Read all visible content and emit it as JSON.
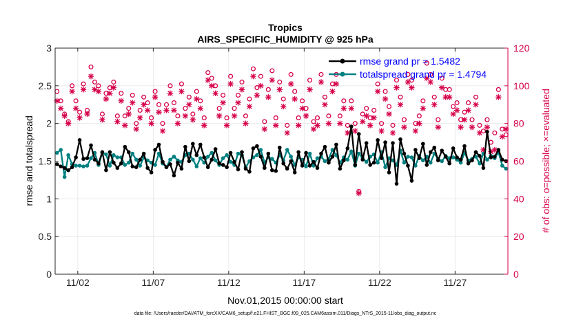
{
  "chart_data": {
    "type": "line",
    "title": "Tropics",
    "subtitle": "AIRS_SPECIFIC_HUMIDITY @ 925 hPa",
    "xlabel": "Nov.01,2015 00:00:00 start",
    "ylabel_left": "rmse and totalspread",
    "ylabel_right": "# of obs: o=possible; ×=evaluated",
    "footnote": "data file: /Users/raeder/DAI/ATM_forcXX/CAM6_setup/f.e21.FHIST_BGC.f09_025.CAM6assim.011/Diags_NTrS_2015-11/obs_diag_output.nc",
    "xlim": [
      0.5,
      30.5
    ],
    "ylim_left": [
      0,
      3
    ],
    "ylim_right": [
      0,
      120
    ],
    "x_ticks": [
      {
        "value": 2,
        "label": "11/02"
      },
      {
        "value": 7,
        "label": "11/07"
      },
      {
        "value": 12,
        "label": "11/12"
      },
      {
        "value": 17,
        "label": "11/17"
      },
      {
        "value": 22,
        "label": "11/22"
      },
      {
        "value": 27,
        "label": "11/27"
      }
    ],
    "y_ticks_left": [
      {
        "value": 0,
        "label": "0"
      },
      {
        "value": 0.5,
        "label": "0.5"
      },
      {
        "value": 1,
        "label": "1"
      },
      {
        "value": 1.5,
        "label": "1.5"
      },
      {
        "value": 2,
        "label": "2"
      },
      {
        "value": 2.5,
        "label": "2.5"
      },
      {
        "value": 3,
        "label": "3"
      }
    ],
    "y_ticks_right": [
      {
        "value": 0,
        "label": "0"
      },
      {
        "value": 20,
        "label": "20"
      },
      {
        "value": 40,
        "label": "40"
      },
      {
        "value": 60,
        "label": "60"
      },
      {
        "value": 80,
        "label": "80"
      },
      {
        "value": 100,
        "label": "100"
      },
      {
        "value": 120,
        "label": "120"
      }
    ],
    "grid": true,
    "legend_position": "top-right",
    "colors": {
      "rmse": "#000000",
      "spread": "#008080",
      "obs": "#d6004b",
      "axis": "#262626"
    },
    "series": [
      {
        "name": "rmse grand pr = 1.5482",
        "axis": "left",
        "x": [
          0.625,
          0.875,
          1.125,
          1.375,
          1.625,
          1.875,
          2.125,
          2.375,
          2.625,
          2.875,
          3.125,
          3.375,
          3.625,
          3.875,
          4.125,
          4.375,
          4.625,
          4.875,
          5.125,
          5.375,
          5.625,
          5.875,
          6.125,
          6.375,
          6.625,
          6.875,
          7.125,
          7.375,
          7.625,
          7.875,
          8.125,
          8.375,
          8.625,
          8.875,
          9.125,
          9.375,
          9.625,
          9.875,
          10.125,
          10.375,
          10.625,
          10.875,
          11.125,
          11.375,
          11.625,
          11.875,
          12.125,
          12.375,
          12.625,
          12.875,
          13.125,
          13.375,
          13.625,
          13.875,
          14.125,
          14.375,
          14.625,
          14.875,
          15.125,
          15.375,
          15.625,
          15.875,
          16.125,
          16.375,
          16.625,
          16.875,
          17.125,
          17.375,
          17.625,
          17.875,
          18.125,
          18.375,
          18.625,
          18.875,
          19.125,
          19.375,
          19.625,
          19.875,
          20.125,
          20.375,
          20.625,
          20.875,
          21.125,
          21.375,
          21.625,
          21.875,
          22.125,
          22.375,
          22.625,
          22.875,
          23.125,
          23.375,
          23.625,
          23.875,
          24.125,
          24.375,
          24.625,
          24.875,
          25.125,
          25.375,
          25.625,
          25.875,
          26.125,
          26.375,
          26.625,
          26.875,
          27.125,
          27.375,
          27.625,
          27.875,
          28.125,
          28.375,
          28.625,
          28.875,
          29.125,
          29.375,
          29.625,
          29.875,
          30.125,
          30.375
        ],
        "values": [
          1.46,
          1.43,
          1.41,
          1.38,
          1.42,
          1.55,
          1.78,
          1.53,
          1.54,
          1.71,
          1.52,
          1.47,
          1.62,
          1.38,
          1.62,
          1.48,
          1.41,
          1.47,
          1.69,
          1.62,
          1.43,
          1.42,
          1.52,
          1.6,
          1.41,
          1.35,
          1.65,
          1.72,
          1.49,
          1.42,
          1.46,
          1.31,
          1.48,
          1.4,
          1.69,
          1.5,
          1.73,
          1.58,
          1.72,
          1.55,
          1.42,
          1.52,
          1.66,
          1.47,
          1.45,
          1.42,
          1.61,
          1.49,
          1.39,
          1.62,
          1.4,
          1.36,
          1.67,
          1.7,
          1.56,
          1.41,
          1.6,
          1.38,
          1.37,
          1.68,
          1.47,
          1.4,
          1.5,
          1.35,
          1.62,
          1.44,
          1.61,
          1.44,
          1.49,
          1.41,
          1.6,
          1.69,
          1.48,
          1.56,
          1.72,
          1.4,
          1.51,
          1.67,
          1.96,
          1.45,
          1.86,
          1.52,
          1.74,
          1.45,
          1.48,
          1.78,
          1.54,
          1.75,
          1.35,
          1.74,
          1.2,
          1.79,
          1.6,
          1.44,
          1.24,
          1.65,
          1.54,
          1.73,
          1.45,
          1.62,
          1.68,
          1.51,
          1.64,
          1.56,
          1.47,
          1.67,
          1.55,
          1.52,
          1.7,
          1.47,
          1.51,
          1.62,
          1.57,
          1.41,
          1.89,
          1.55,
          1.56,
          1.65,
          1.52,
          1.5
        ]
      },
      {
        "name": "totalspread grand pr = 1.4794",
        "axis": "left",
        "x": [
          0.625,
          0.875,
          1.125,
          1.375,
          1.625,
          1.875,
          2.125,
          2.375,
          2.625,
          2.875,
          3.125,
          3.375,
          3.625,
          3.875,
          4.125,
          4.375,
          4.625,
          4.875,
          5.125,
          5.375,
          5.625,
          5.875,
          6.125,
          6.375,
          6.625,
          6.875,
          7.125,
          7.375,
          7.625,
          7.875,
          8.125,
          8.375,
          8.625,
          8.875,
          9.125,
          9.375,
          9.625,
          9.875,
          10.125,
          10.375,
          10.625,
          10.875,
          11.125,
          11.375,
          11.625,
          11.875,
          12.125,
          12.375,
          12.625,
          12.875,
          13.125,
          13.375,
          13.625,
          13.875,
          14.125,
          14.375,
          14.625,
          14.875,
          15.125,
          15.375,
          15.625,
          15.875,
          16.125,
          16.375,
          16.625,
          16.875,
          17.125,
          17.375,
          17.625,
          17.875,
          18.125,
          18.375,
          18.625,
          18.875,
          19.125,
          19.375,
          19.625,
          19.875,
          20.125,
          20.375,
          20.625,
          20.875,
          21.125,
          21.375,
          21.625,
          21.875,
          22.125,
          22.375,
          22.625,
          22.875,
          23.125,
          23.375,
          23.625,
          23.875,
          24.125,
          24.375,
          24.625,
          24.875,
          25.125,
          25.375,
          25.625,
          25.875,
          26.125,
          26.375,
          26.625,
          26.875,
          27.125,
          27.375,
          27.625,
          27.875,
          28.125,
          28.375,
          28.625,
          28.875,
          29.125,
          29.375,
          29.625,
          29.875,
          30.125,
          30.375
        ],
        "values": [
          1.61,
          1.65,
          1.29,
          1.58,
          1.46,
          1.44,
          1.44,
          1.43,
          1.44,
          1.54,
          1.61,
          1.45,
          1.61,
          1.59,
          1.44,
          1.58,
          1.55,
          1.55,
          1.45,
          1.48,
          1.6,
          1.52,
          1.44,
          1.55,
          1.51,
          1.48,
          1.45,
          1.6,
          1.47,
          1.42,
          1.52,
          1.56,
          1.51,
          1.49,
          1.58,
          1.6,
          1.52,
          1.43,
          1.54,
          1.48,
          1.56,
          1.61,
          1.51,
          1.45,
          1.54,
          1.58,
          1.49,
          1.45,
          1.6,
          1.58,
          1.42,
          1.5,
          1.55,
          1.58,
          1.65,
          1.48,
          1.55,
          1.53,
          1.48,
          1.58,
          1.51,
          1.65,
          1.56,
          1.45,
          1.55,
          1.52,
          1.43,
          1.6,
          1.44,
          1.54,
          1.56,
          1.5,
          1.53,
          1.65,
          1.58,
          1.48,
          1.55,
          1.52,
          1.63,
          1.44,
          1.6,
          1.54,
          1.49,
          1.56,
          1.59,
          1.48,
          1.62,
          1.42,
          1.54,
          1.51,
          1.45,
          1.64,
          1.48,
          1.56,
          1.55,
          1.44,
          1.57,
          1.51,
          1.56,
          1.48,
          1.6,
          1.53,
          1.5,
          1.57,
          1.54,
          1.55,
          1.52,
          1.48,
          1.61,
          1.51,
          1.53,
          1.56,
          1.47,
          1.6,
          1.52,
          1.57,
          1.54,
          1.62,
          1.44,
          1.4
        ]
      },
      {
        "name": "obs possible",
        "axis": "right",
        "marker": "o",
        "x": [
          0.625,
          0.875,
          1.125,
          1.375,
          1.625,
          1.875,
          2.125,
          2.375,
          2.625,
          2.875,
          3.125,
          3.375,
          3.625,
          3.875,
          4.125,
          4.375,
          4.625,
          4.875,
          5.125,
          5.375,
          5.625,
          5.875,
          6.125,
          6.375,
          6.625,
          6.875,
          7.125,
          7.375,
          7.625,
          7.875,
          8.125,
          8.375,
          8.625,
          8.875,
          9.125,
          9.375,
          9.625,
          9.875,
          10.125,
          10.375,
          10.625,
          10.875,
          11.125,
          11.375,
          11.625,
          11.875,
          12.125,
          12.375,
          12.625,
          12.875,
          13.125,
          13.375,
          13.625,
          13.875,
          14.125,
          14.375,
          14.625,
          14.875,
          15.125,
          15.375,
          15.625,
          15.875,
          16.125,
          16.375,
          16.625,
          16.875,
          17.125,
          17.375,
          17.625,
          17.875,
          18.125,
          18.375,
          18.625,
          18.875,
          19.125,
          19.375,
          19.625,
          19.875,
          20.125,
          20.375,
          20.625,
          20.875,
          21.125,
          21.375,
          21.625,
          21.875,
          22.125,
          22.375,
          22.625,
          22.875,
          23.125,
          23.375,
          23.625,
          23.875,
          24.125,
          24.375,
          24.625,
          24.875,
          25.125,
          25.375,
          25.625,
          25.875,
          26.125,
          26.375,
          26.625,
          26.875,
          27.125,
          27.375,
          27.625,
          27.875,
          28.125,
          28.375,
          28.625,
          28.875,
          29.125,
          29.375,
          29.625,
          29.875,
          30.125,
          30.375
        ],
        "values": [
          97,
          92,
          85,
          81,
          100,
          92,
          86,
          101,
          87,
          110,
          102,
          100,
          85,
          96,
          99,
          102,
          84,
          96,
          84,
          88,
          95,
          80,
          87,
          94,
          91,
          83,
          97,
          90,
          80,
          90,
          100,
          91,
          84,
          101,
          88,
          94,
          85,
          97,
          92,
          83,
          107,
          104,
          100,
          88,
          95,
          83,
          105,
          88,
          95,
          102,
          84,
          93,
          109,
          99,
          105,
          81,
          98,
          108,
          83,
          102,
          93,
          79,
          106,
          97,
          83,
          92,
          88,
          103,
          81,
          83,
          106,
          94,
          84,
          101,
          106,
          84,
          92,
          79,
          92,
          80,
          44,
          85,
          88,
          83,
          87,
          101,
          80,
          97,
          89,
          79,
          103,
          94,
          82,
          106,
          103,
          80,
          84,
          92,
          112,
          106,
          94,
          82,
          104,
          98,
          98,
          89,
          91,
          82,
          86,
          91,
          82,
          94,
          79,
          76,
          82,
          70,
          75,
          98,
          77,
          74
        ]
      },
      {
        "name": "obs evaluated",
        "axis": "right",
        "marker": "x",
        "x": [
          0.625,
          0.875,
          1.125,
          1.375,
          1.625,
          1.875,
          2.125,
          2.375,
          2.625,
          2.875,
          3.125,
          3.375,
          3.625,
          3.875,
          4.125,
          4.375,
          4.625,
          4.875,
          5.125,
          5.375,
          5.625,
          5.875,
          6.125,
          6.375,
          6.625,
          6.875,
          7.125,
          7.375,
          7.625,
          7.875,
          8.125,
          8.375,
          8.625,
          8.875,
          9.125,
          9.375,
          9.625,
          9.875,
          10.125,
          10.375,
          10.625,
          10.875,
          11.125,
          11.375,
          11.625,
          11.875,
          12.125,
          12.375,
          12.625,
          12.875,
          13.125,
          13.375,
          13.625,
          13.875,
          14.125,
          14.375,
          14.625,
          14.875,
          15.125,
          15.375,
          15.625,
          15.875,
          16.125,
          16.375,
          16.625,
          16.875,
          17.125,
          17.375,
          17.625,
          17.875,
          18.125,
          18.375,
          18.625,
          18.875,
          19.125,
          19.375,
          19.625,
          19.875,
          20.125,
          20.375,
          20.625,
          20.875,
          21.125,
          21.375,
          21.625,
          21.875,
          22.125,
          22.375,
          22.625,
          22.875,
          23.125,
          23.375,
          23.625,
          23.875,
          24.125,
          24.375,
          24.625,
          24.875,
          25.125,
          25.375,
          25.625,
          25.875,
          26.125,
          26.375,
          26.625,
          26.875,
          27.125,
          27.375,
          27.625,
          27.875,
          28.125,
          28.375,
          28.625,
          28.875,
          29.125,
          29.375,
          29.625,
          29.875,
          30.125,
          30.375
        ],
        "values": [
          92,
          88,
          84,
          80,
          97,
          88,
          83,
          98,
          85,
          105,
          98,
          97,
          82,
          93,
          96,
          99,
          81,
          92,
          79,
          85,
          91,
          77,
          83,
          90,
          87,
          80,
          94,
          86,
          76,
          87,
          96,
          87,
          80,
          97,
          84,
          90,
          82,
          93,
          88,
          79,
          103,
          100,
          96,
          84,
          91,
          79,
          101,
          84,
          91,
          98,
          80,
          89,
          105,
          95,
          100,
          77,
          94,
          103,
          79,
          98,
          89,
          75,
          101,
          93,
          79,
          88,
          84,
          98,
          77,
          79,
          102,
          90,
          80,
          97,
          101,
          80,
          88,
          75,
          88,
          76,
          43,
          81,
          84,
          79,
          83,
          97,
          76,
          93,
          85,
          75,
          99,
          90,
          78,
          102,
          99,
          76,
          80,
          88,
          104,
          102,
          90,
          78,
          99,
          94,
          94,
          85,
          87,
          78,
          82,
          87,
          78,
          90,
          75,
          66,
          78,
          65,
          66,
          94,
          73,
          77
        ]
      }
    ]
  }
}
